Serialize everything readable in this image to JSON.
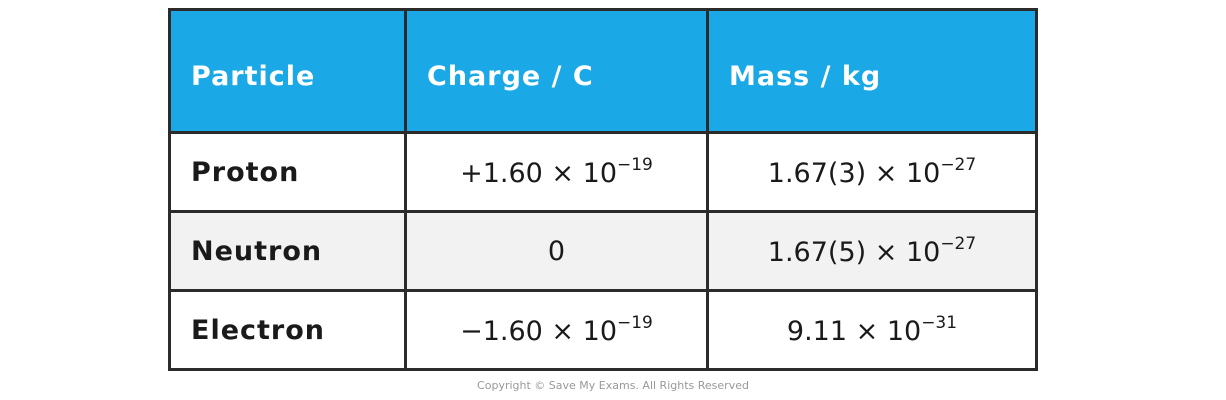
{
  "table": {
    "header": [
      "Particle",
      "Charge / C",
      "Mass / kg"
    ],
    "rows": [
      [
        "Proton",
        {
          "text": "+1.60 × 10",
          "sup": "−19"
        },
        {
          "text": "1.67(3) × 10",
          "sup": "−27"
        }
      ],
      [
        "Neutron",
        {
          "text": "0"
        },
        {
          "text": "1.67(5) × 10",
          "sup": "−27"
        }
      ],
      [
        "Electron",
        {
          "text": "−1.60 × 10",
          "sup": "−19"
        },
        {
          "text": "9.11 × 10",
          "sup": "−31"
        }
      ]
    ]
  },
  "footer": "Copyright © Save My Exams. All Rights Reserved"
}
